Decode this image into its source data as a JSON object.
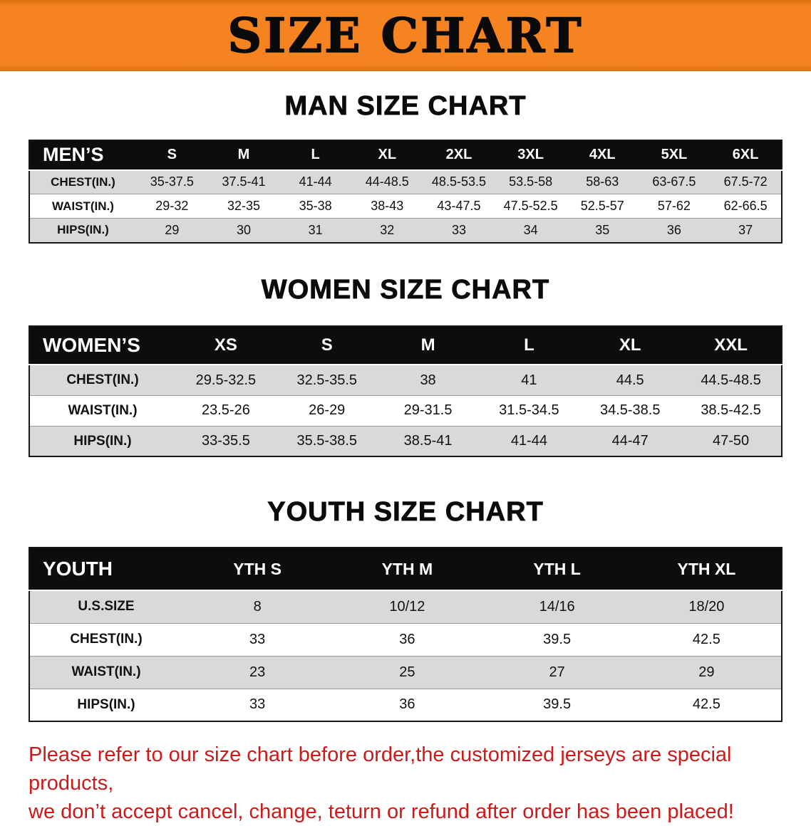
{
  "banner": {
    "title": "SIZE CHART",
    "bg_color": "#f5831f"
  },
  "sections": [
    {
      "heading": "MAN SIZE CHART",
      "table": {
        "header": [
          "MEN’S",
          "S",
          "M",
          "L",
          "XL",
          "2XL",
          "3XL",
          "4XL",
          "5XL",
          "6XL"
        ],
        "rows": [
          [
            "CHEST(IN.)",
            "35-37.5",
            "37.5-41",
            "41-44",
            "44-48.5",
            "48.5-53.5",
            "53.5-58",
            "58-63",
            "63-67.5",
            "67.5-72"
          ],
          [
            "WAIST(IN.)",
            "29-32",
            "32-35",
            "35-38",
            "38-43",
            "43-47.5",
            "47.5-52.5",
            "52.5-57",
            "57-62",
            "62-66.5"
          ],
          [
            "HIPS(IN.)",
            "29",
            "30",
            "31",
            "32",
            "33",
            "34",
            "35",
            "36",
            "37"
          ]
        ]
      }
    },
    {
      "heading": "WOMEN SIZE CHART",
      "table": {
        "header": [
          "WOMEN’S",
          "XS",
          "S",
          "M",
          "L",
          "XL",
          "XXL"
        ],
        "rows": [
          [
            "CHEST(IN.)",
            "29.5-32.5",
            "32.5-35.5",
            "38",
            "41",
            "44.5",
            "44.5-48.5"
          ],
          [
            "WAIST(IN.)",
            "23.5-26",
            "26-29",
            "29-31.5",
            "31.5-34.5",
            "34.5-38.5",
            "38.5-42.5"
          ],
          [
            "HIPS(IN.)",
            "33-35.5",
            "35.5-38.5",
            "38.5-41",
            "41-44",
            "44-47",
            "47-50"
          ]
        ]
      }
    },
    {
      "heading": "YOUTH SIZE CHART",
      "table": {
        "header": [
          "YOUTH",
          "YTH S",
          "YTH M",
          "YTH L",
          "YTH XL"
        ],
        "rows": [
          [
            "U.S.SIZE",
            "8",
            "10/12",
            "14/16",
            "18/20"
          ],
          [
            "CHEST(IN.)",
            "33",
            "36",
            "39.5",
            "42.5"
          ],
          [
            "WAIST(IN.)",
            "23",
            "25",
            "27",
            "29"
          ],
          [
            "HIPS(IN.)",
            "33",
            "36",
            "39.5",
            "42.5"
          ]
        ]
      }
    }
  ],
  "disclaimer": {
    "line1": "Please refer to our size chart before order,the customized jerseys are special products,",
    "line2": "we don’t accept cancel, change, teturn or refund after order has been placed!",
    "color": "#d01818"
  }
}
